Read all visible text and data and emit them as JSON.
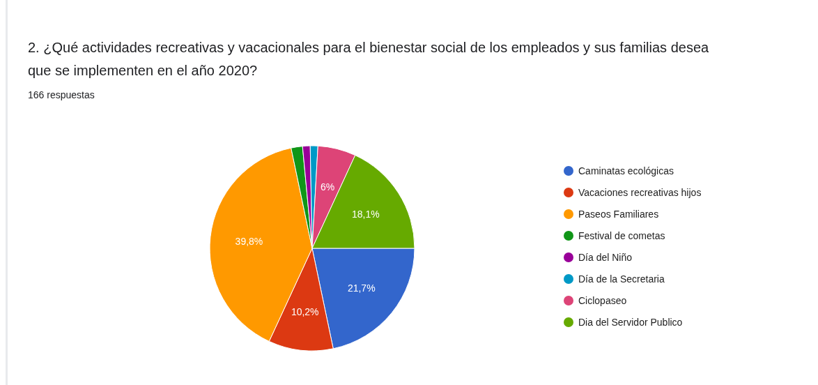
{
  "chart_data": {
    "type": "pie",
    "title": "2. ¿Qué actividades recreativas y vacacionales para el bienestar social de los empleados y sus familias desea que se implementen en el año 2020?",
    "subtitle": "166 respuestas",
    "categories": [
      "Caminatas ecológicas",
      "Vacaciones recreativas hijos",
      "Paseos Familiares",
      "Festival de cometas",
      "Día del Niño",
      "Día de la Secretaria",
      "Ciclopaseo",
      "Dia del Servidor Publico"
    ],
    "values": [
      21.7,
      10.2,
      39.8,
      1.8,
      1.2,
      1.2,
      6,
      18.1
    ],
    "value_labels": [
      "21,7%",
      "10,2%",
      "39,8%",
      null,
      null,
      null,
      "6%",
      "18,1%"
    ],
    "colors": [
      "#3366cc",
      "#dc3912",
      "#ff9900",
      "#109618",
      "#990099",
      "#0099c6",
      "#dd4477",
      "#66aa00"
    ],
    "legend": "right"
  }
}
